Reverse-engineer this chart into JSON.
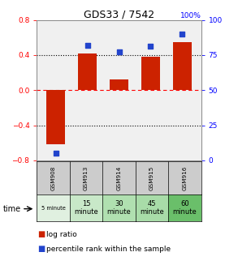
{
  "title": "GDS33 / 7542",
  "samples": [
    "GSM908",
    "GSM913",
    "GSM914",
    "GSM915",
    "GSM916"
  ],
  "time_labels": [
    "5 minute",
    "15\nminute",
    "30\nminute",
    "45\nminute",
    "60\nminute"
  ],
  "log_ratios": [
    -0.62,
    0.42,
    0.12,
    0.38,
    0.55
  ],
  "percentile_ranks": [
    5,
    82,
    77,
    81,
    90
  ],
  "bar_color": "#cc2200",
  "dot_color": "#2244cc",
  "ylim_left": [
    -0.8,
    0.8
  ],
  "ylim_right": [
    0,
    100
  ],
  "yticks_left": [
    -0.8,
    -0.4,
    0,
    0.4,
    0.8
  ],
  "yticks_right": [
    0,
    25,
    50,
    75,
    100
  ],
  "gsm_bg": "#cccccc",
  "time_colors": [
    "#e0f0e0",
    "#c8e8c8",
    "#b0e0b0",
    "#a8dca8",
    "#6abf6a"
  ],
  "plot_bg": "#f0f0f0",
  "bar_width": 0.6
}
